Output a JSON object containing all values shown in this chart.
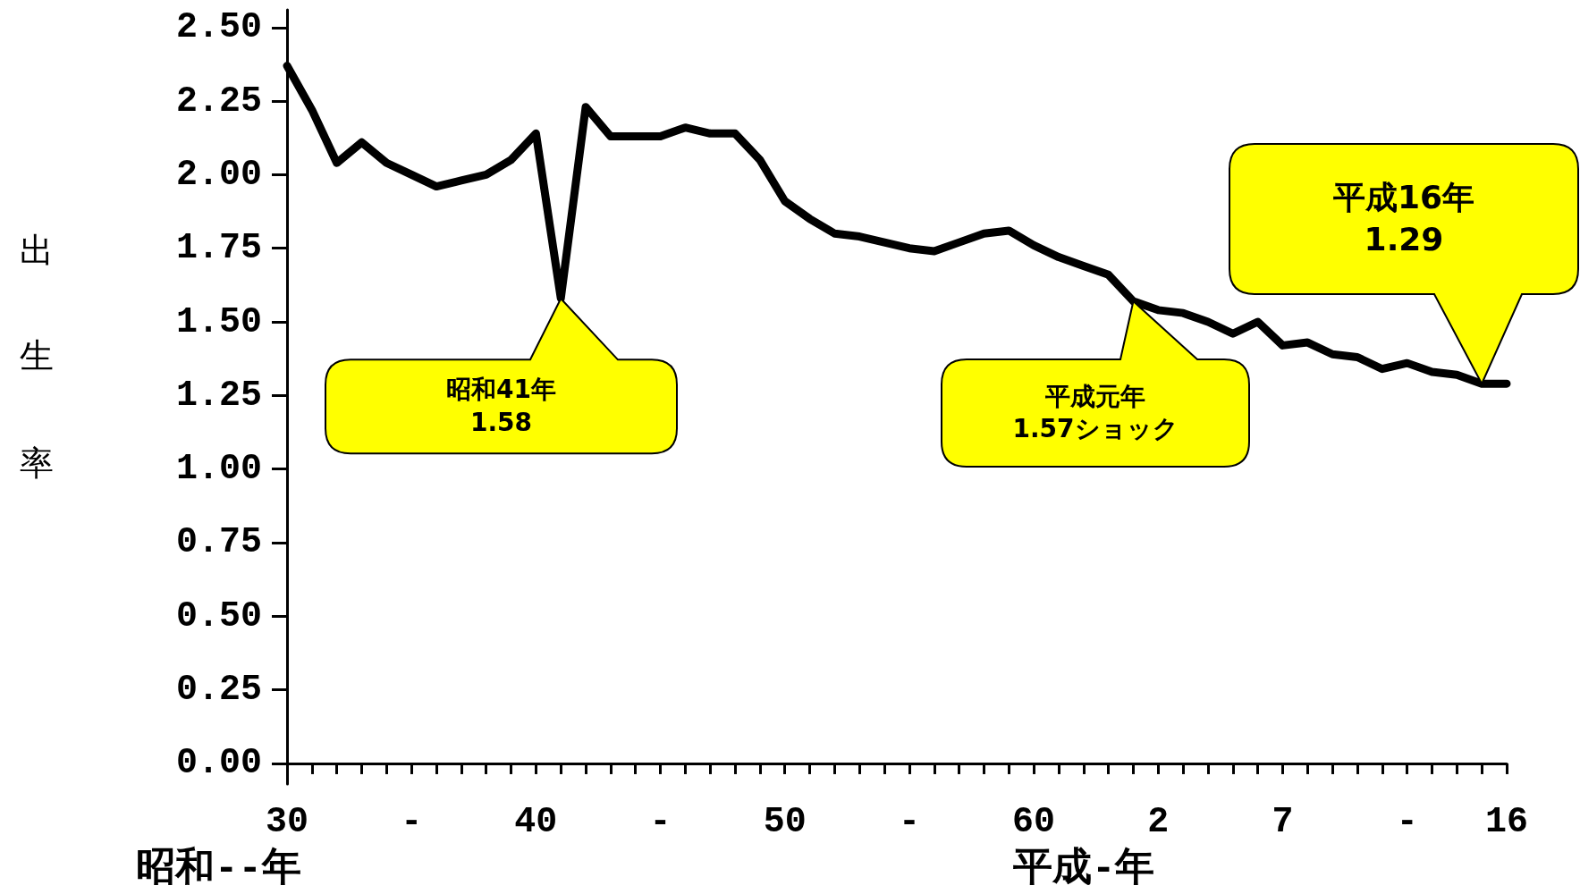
{
  "chart_data": {
    "type": "line",
    "ylabel": "出生率",
    "xlabel": "昭和--年",
    "line_style": "solid",
    "categories": [
      "30",
      null,
      null,
      null,
      null,
      "-",
      null,
      null,
      null,
      null,
      "40",
      null,
      null,
      null,
      null,
      "-",
      null,
      null,
      null,
      null,
      "50",
      null,
      null,
      null,
      null,
      "-",
      null,
      null,
      null,
      null,
      "60",
      null,
      null,
      null,
      null,
      "2",
      null,
      null,
      null,
      null,
      "7",
      null,
      null,
      null,
      null,
      "-",
      null,
      null,
      null,
      "16"
    ],
    "series": [
      {
        "color": "#000000",
        "values": [
          2.37,
          2.22,
          2.04,
          2.11,
          2.04,
          2.0,
          1.96,
          1.98,
          2.0,
          2.05,
          2.14,
          1.58,
          2.23,
          2.13,
          2.13,
          2.13,
          2.16,
          2.14,
          2.14,
          2.05,
          1.91,
          1.85,
          1.8,
          1.79,
          1.77,
          1.75,
          1.74,
          1.77,
          1.8,
          1.81,
          1.76,
          1.72,
          1.69,
          1.66,
          1.57,
          1.54,
          1.53,
          1.5,
          1.46,
          1.5,
          1.42,
          1.43,
          1.39,
          1.38,
          1.34,
          1.36,
          1.33,
          1.32,
          1.29,
          1.29
        ]
      }
    ],
    "ylim": [
      -0.07,
      2.56
    ],
    "yticks": [
      {
        "value": 0,
        "label": "0.00"
      },
      {
        "value": 0.25,
        "label": "0.25"
      },
      {
        "value": 0.5,
        "label": "0.50"
      },
      {
        "value": 0.75,
        "label": "0.75"
      },
      {
        "value": 1,
        "label": "1.00"
      },
      {
        "value": 1.25,
        "label": "1.25"
      },
      {
        "value": 1.5,
        "label": "1.50"
      },
      {
        "value": 1.75,
        "label": "1.75"
      },
      {
        "value": 2,
        "label": "2.00"
      },
      {
        "value": 2.25,
        "label": "2.25"
      },
      {
        "value": 2.5,
        "label": "2.50"
      }
    ],
    "annotations": [
      "昭和41年\n1.58",
      "平成元年\n1.57ショック",
      "平成16年\n1.29",
      "平成-年"
    ]
  }
}
